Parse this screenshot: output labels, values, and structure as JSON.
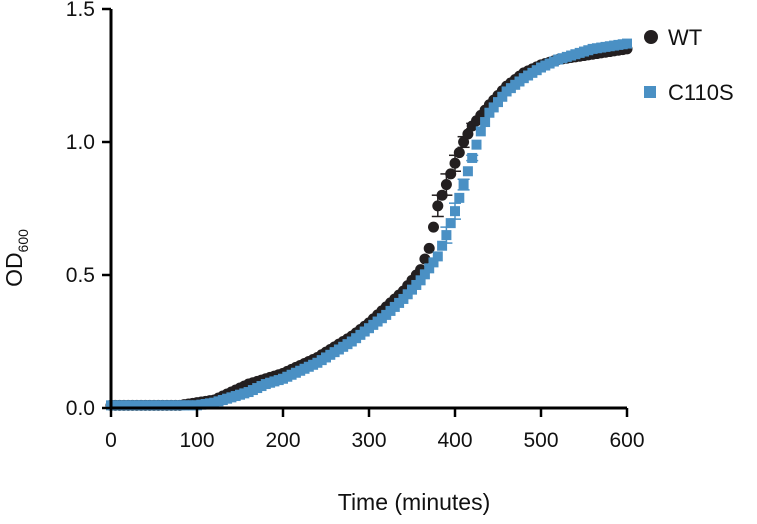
{
  "chart_data": {
    "type": "scatter",
    "xlabel": "Time (minutes)",
    "ylabel_main": "OD",
    "ylabel_sub": "600",
    "xlim": [
      0,
      600
    ],
    "ylim": [
      0,
      1.5
    ],
    "xticks": [
      "0",
      "100",
      "200",
      "300",
      "400",
      "500",
      "600"
    ],
    "xtick_values": [
      0,
      100,
      200,
      300,
      400,
      500,
      600
    ],
    "yticks": [
      "0.0",
      "0.5",
      "1.0",
      "1.5"
    ],
    "ytick_values": [
      0,
      0.5,
      1.0,
      1.5
    ],
    "grid": false,
    "legend_position": "top-right",
    "series": [
      {
        "name": "WT",
        "marker": "circle",
        "color": "#231f20",
        "x": [
          0,
          40,
          80,
          100,
          120,
          140,
          160,
          180,
          200,
          220,
          240,
          260,
          280,
          300,
          320,
          340,
          360,
          370,
          380,
          390,
          400,
          410,
          420,
          440,
          460,
          480,
          500,
          520,
          540,
          560,
          580,
          600
        ],
        "values": [
          0.01,
          0.01,
          0.01,
          0.02,
          0.03,
          0.06,
          0.09,
          0.11,
          0.13,
          0.16,
          0.19,
          0.23,
          0.27,
          0.32,
          0.38,
          0.44,
          0.52,
          0.6,
          0.76,
          0.84,
          0.92,
          1.0,
          1.06,
          1.14,
          1.21,
          1.26,
          1.29,
          1.31,
          1.32,
          1.33,
          1.34,
          1.35
        ],
        "error": [
          0,
          0,
          0,
          0,
          0,
          0,
          0,
          0,
          0,
          0,
          0,
          0,
          0,
          0,
          0,
          0,
          0,
          0,
          0.04,
          0.04,
          0.03,
          0.02,
          0.01,
          0,
          0,
          0,
          0,
          0,
          0,
          0,
          0,
          0
        ]
      },
      {
        "name": "C110S",
        "marker": "square",
        "color": "#4a90c4",
        "x": [
          0,
          40,
          80,
          100,
          120,
          140,
          160,
          180,
          200,
          220,
          240,
          260,
          280,
          300,
          320,
          340,
          360,
          380,
          390,
          400,
          410,
          420,
          430,
          440,
          460,
          480,
          500,
          520,
          540,
          560,
          580,
          600
        ],
        "values": [
          0.01,
          0.01,
          0.01,
          0.01,
          0.02,
          0.04,
          0.06,
          0.09,
          0.11,
          0.14,
          0.17,
          0.21,
          0.25,
          0.3,
          0.35,
          0.41,
          0.48,
          0.57,
          0.65,
          0.74,
          0.84,
          0.94,
          1.04,
          1.11,
          1.19,
          1.24,
          1.28,
          1.31,
          1.33,
          1.35,
          1.36,
          1.37
        ],
        "error": [
          0,
          0,
          0,
          0,
          0,
          0,
          0,
          0,
          0,
          0,
          0,
          0,
          0,
          0,
          0,
          0,
          0,
          0,
          0.03,
          0.03,
          0.02,
          0.01,
          0,
          0,
          0,
          0,
          0,
          0,
          0,
          0,
          0,
          0
        ]
      }
    ]
  }
}
